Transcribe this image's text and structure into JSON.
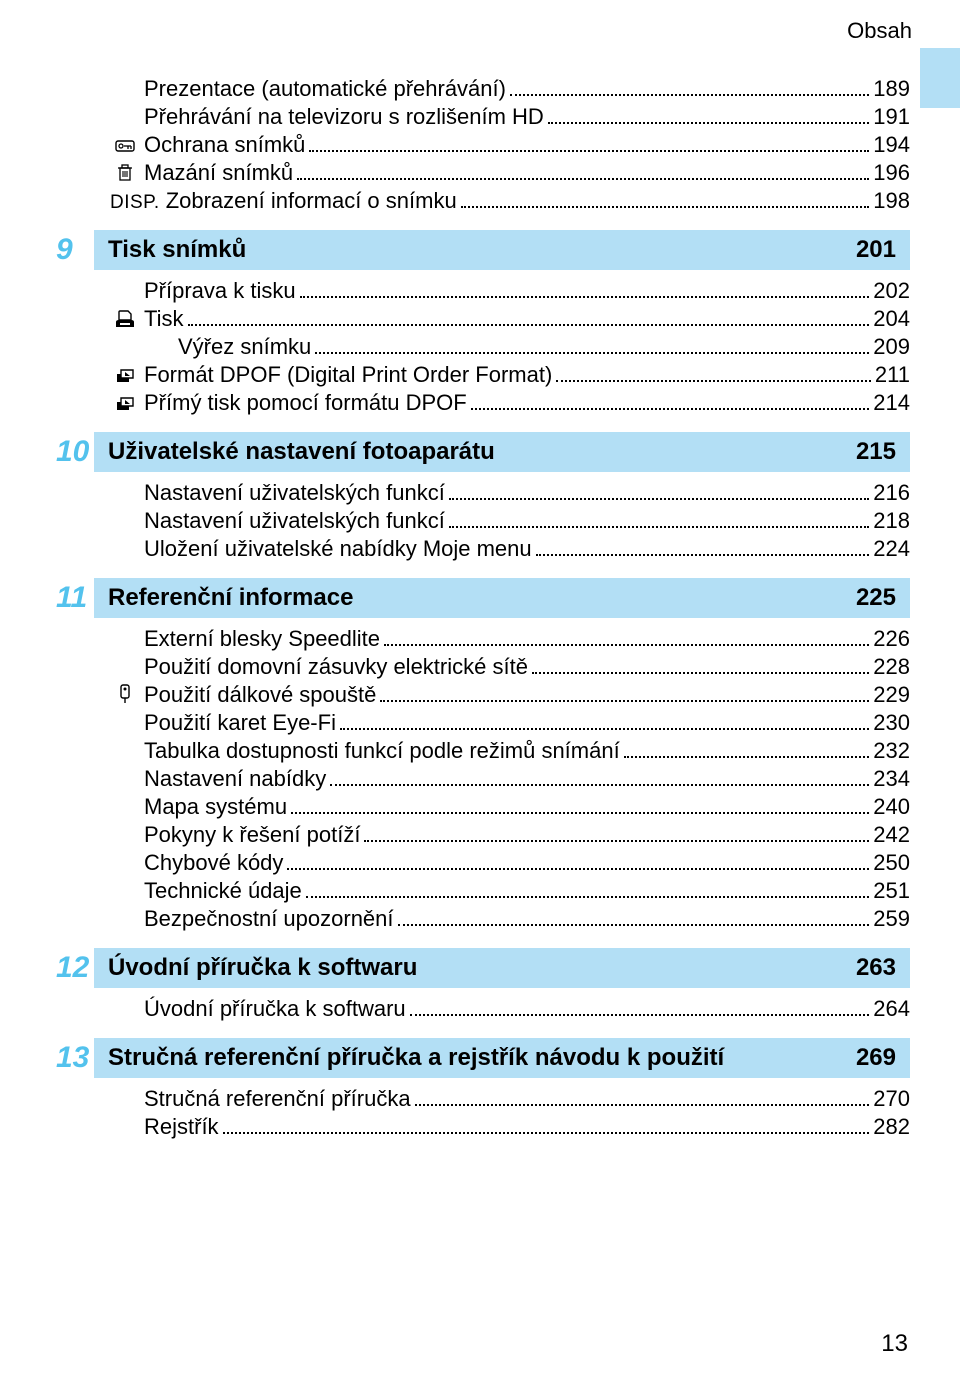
{
  "header": "Obsah",
  "page_number": "13",
  "colors": {
    "accent_bg": "#b3dff5",
    "section_num": "#53c2ed"
  },
  "lines": [
    {
      "kind": "toc",
      "indent": 1,
      "icon": null,
      "label": "Prezentace (automatické přehrávání)",
      "page": "189"
    },
    {
      "kind": "toc",
      "indent": 1,
      "icon": null,
      "label": "Přehrávání na televizoru s rozlišením HD",
      "page": "191"
    },
    {
      "kind": "toc",
      "indent": 1,
      "icon": "key",
      "label": "Ochrana snímků",
      "page": "194"
    },
    {
      "kind": "toc",
      "indent": 1,
      "icon": "trash",
      "label": "Mazání snímků",
      "page": "196"
    },
    {
      "kind": "toc",
      "indent": 1,
      "icon": "disp",
      "label": "Zobrazení informací o snímku",
      "page": "198"
    },
    {
      "kind": "section",
      "num": "9",
      "title": "Tisk snímků",
      "page": "201"
    },
    {
      "kind": "toc",
      "indent": 1,
      "icon": null,
      "label": "Příprava k tisku",
      "page": "202"
    },
    {
      "kind": "toc",
      "indent": 1,
      "icon": "print",
      "label": "Tisk",
      "page": "204"
    },
    {
      "kind": "toc",
      "indent": 2,
      "icon": null,
      "label": "Výřez snímku",
      "page": "209"
    },
    {
      "kind": "toc",
      "indent": 1,
      "icon": "dpof",
      "label": "Formát DPOF (Digital Print Order Format)",
      "page": "211"
    },
    {
      "kind": "toc",
      "indent": 1,
      "icon": "dpof",
      "label": "Přímý tisk pomocí formátu DPOF",
      "page": "214"
    },
    {
      "kind": "section",
      "num": "10",
      "title": "Uživatelské nastavení fotoaparátu",
      "page": "215"
    },
    {
      "kind": "toc",
      "indent": 1,
      "icon": null,
      "label": "Nastavení uživatelských funkcí",
      "page": "216"
    },
    {
      "kind": "toc",
      "indent": 1,
      "icon": null,
      "label": "Nastavení uživatelských funkcí",
      "page": "218"
    },
    {
      "kind": "toc",
      "indent": 1,
      "icon": null,
      "label": "Uložení uživatelské nabídky Moje menu",
      "page": "224"
    },
    {
      "kind": "section",
      "num": "11",
      "title": "Referenční informace",
      "page": "225"
    },
    {
      "kind": "toc",
      "indent": 1,
      "icon": null,
      "label": "Externí blesky Speedlite",
      "page": "226"
    },
    {
      "kind": "toc",
      "indent": 1,
      "icon": null,
      "label": "Použití domovní zásuvky elektrické sítě",
      "page": "228"
    },
    {
      "kind": "toc",
      "indent": 1,
      "icon": "remote",
      "label": "Použití dálkové spouště",
      "page": "229"
    },
    {
      "kind": "toc",
      "indent": 1,
      "icon": null,
      "label": "Použití karet Eye-Fi",
      "page": "230"
    },
    {
      "kind": "toc",
      "indent": 1,
      "icon": null,
      "label": "Tabulka dostupnosti funkcí podle režimů snímání",
      "page": "232"
    },
    {
      "kind": "toc",
      "indent": 1,
      "icon": null,
      "label": "Nastavení nabídky",
      "page": "234"
    },
    {
      "kind": "toc",
      "indent": 1,
      "icon": null,
      "label": "Mapa systému",
      "page": "240"
    },
    {
      "kind": "toc",
      "indent": 1,
      "icon": null,
      "label": "Pokyny k řešení potíží",
      "page": "242"
    },
    {
      "kind": "toc",
      "indent": 1,
      "icon": null,
      "label": "Chybové kódy",
      "page": "250"
    },
    {
      "kind": "toc",
      "indent": 1,
      "icon": null,
      "label": "Technické údaje",
      "page": "251"
    },
    {
      "kind": "toc",
      "indent": 1,
      "icon": null,
      "label": "Bezpečnostní upozornění",
      "page": "259"
    },
    {
      "kind": "section",
      "num": "12",
      "title": "Úvodní příručka k softwaru",
      "page": "263"
    },
    {
      "kind": "toc",
      "indent": 1,
      "icon": null,
      "label": "Úvodní příručka k softwaru",
      "page": "264"
    },
    {
      "kind": "section",
      "num": "13",
      "title": "Stručná referenční příručka a rejstřík návodu k použití",
      "page": "269"
    },
    {
      "kind": "toc",
      "indent": 1,
      "icon": null,
      "label": "Stručná referenční příručka",
      "page": "270"
    },
    {
      "kind": "toc",
      "indent": 1,
      "icon": null,
      "label": "Rejstřík",
      "page": "282"
    }
  ]
}
